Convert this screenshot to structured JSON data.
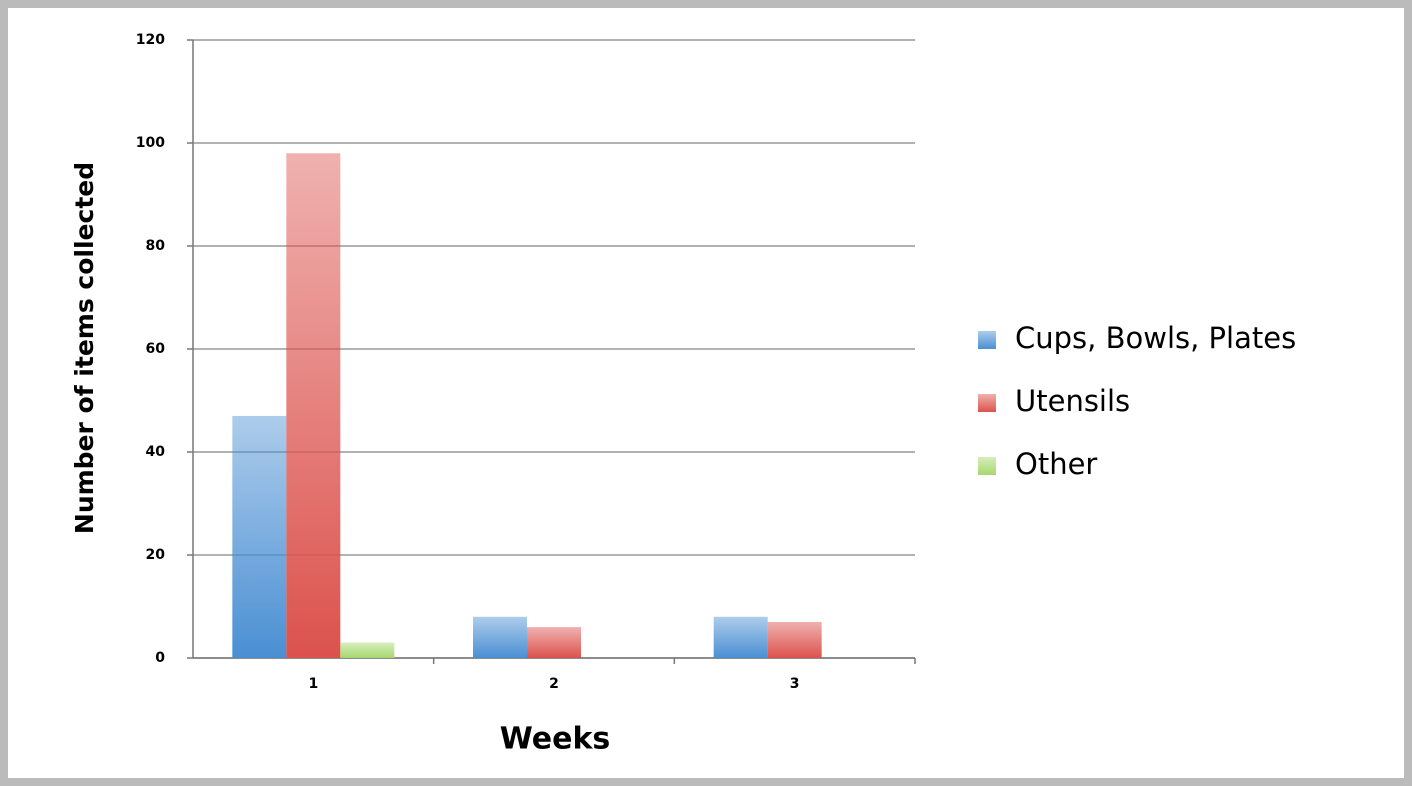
{
  "chart_data": {
    "type": "bar",
    "categories": [
      "1",
      "2",
      "3"
    ],
    "series": [
      {
        "name": "Cups, Bowls, Plates",
        "color": "#4a8fd3",
        "values": [
          47,
          8,
          8
        ]
      },
      {
        "name": "Utensils",
        "color": "#dc524d",
        "values": [
          98,
          6,
          7
        ]
      },
      {
        "name": "Other",
        "color": "#a6d86e",
        "values": [
          3,
          0,
          0
        ]
      }
    ],
    "xlabel": "Weeks",
    "ylabel": "Number of items collected",
    "ylim": [
      0,
      120
    ],
    "yticks": [
      0,
      20,
      40,
      60,
      80,
      100,
      120
    ],
    "grid": true,
    "legend": "right"
  }
}
